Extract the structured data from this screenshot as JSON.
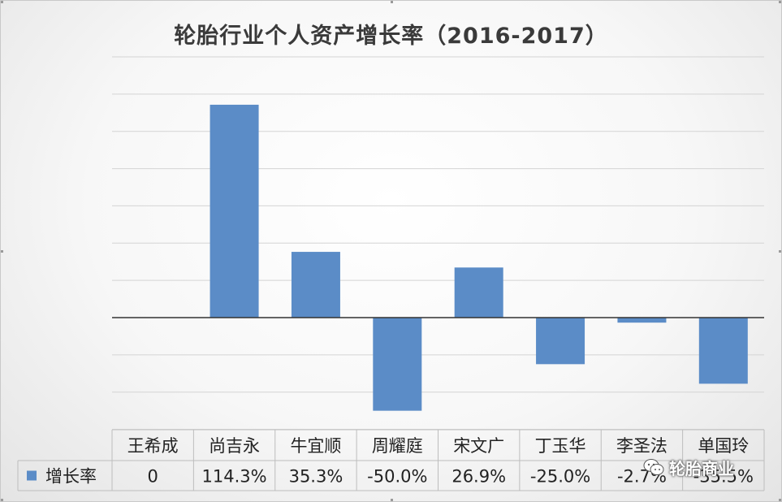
{
  "chart_data": {
    "type": "bar",
    "title": "轮胎行业个人资产增长率（2016-2017）",
    "categories": [
      "王希成",
      "尚吉永",
      "牛宜顺",
      "周耀庭",
      "宋文广",
      "丁玉华",
      "李圣法",
      "单国玲"
    ],
    "series": [
      {
        "name": "增长率",
        "values": [
          0,
          114.3,
          35.3,
          -50.0,
          26.9,
          -25.0,
          -2.7,
          -35.5
        ],
        "labels": [
          "0",
          "114.3%",
          "35.3%",
          "-50.0%",
          "26.9%",
          "-25.0%",
          "-2.7%",
          "-35.5%"
        ],
        "color": "#5b8cc7"
      }
    ],
    "ylim": [
      -60,
      140
    ],
    "grid": true,
    "legend": "data-table-left"
  },
  "watermark": {
    "text": "轮胎商业",
    "icon": "wechat-icon"
  }
}
